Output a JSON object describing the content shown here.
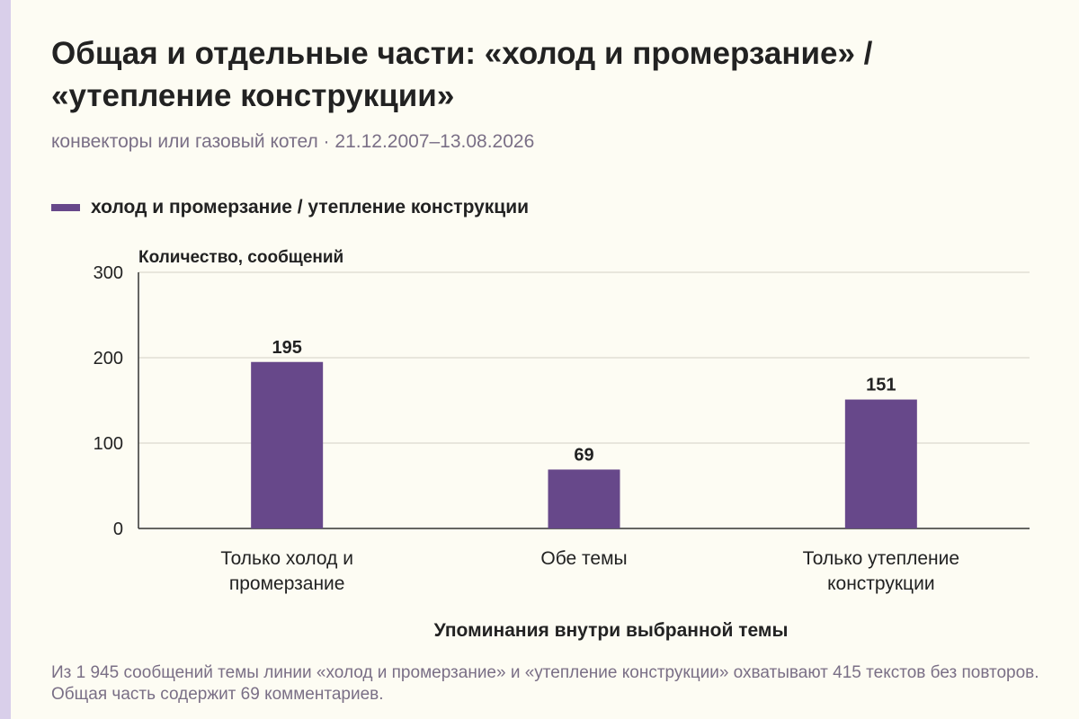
{
  "title": "Общая и отдельные части: «холод и промерзание» / «утепление конструкции»",
  "subtitle": "конвекторы или газовый котел · 21.12.2007–13.08.2026",
  "note": "Из 1 945 сообщений темы линии «холод и промерзание» и «утепление конструкции» охватывают 415 текстов без повторов. Общая часть содержит 69 комментариев.",
  "colors": {
    "bar": "#67488a",
    "accent": "#d9cfea",
    "background": "#fdfcf3"
  },
  "chart_data": {
    "type": "bar",
    "categories": [
      [
        "Только холод и",
        "промерзание"
      ],
      [
        "Обе темы"
      ],
      [
        "Только утепление",
        "конструкции"
      ]
    ],
    "series": [
      {
        "name": "холод и промерзание / утепление конструкции",
        "values": [
          195,
          69,
          151
        ]
      }
    ],
    "xlabel": "Упоминания внутри выбранной темы",
    "ylabel": "Количество, сообщений",
    "ylim": [
      0,
      300
    ],
    "yticks": [
      0,
      100,
      200,
      300
    ],
    "data_labels": true,
    "grid": true,
    "legend": "top-left"
  }
}
